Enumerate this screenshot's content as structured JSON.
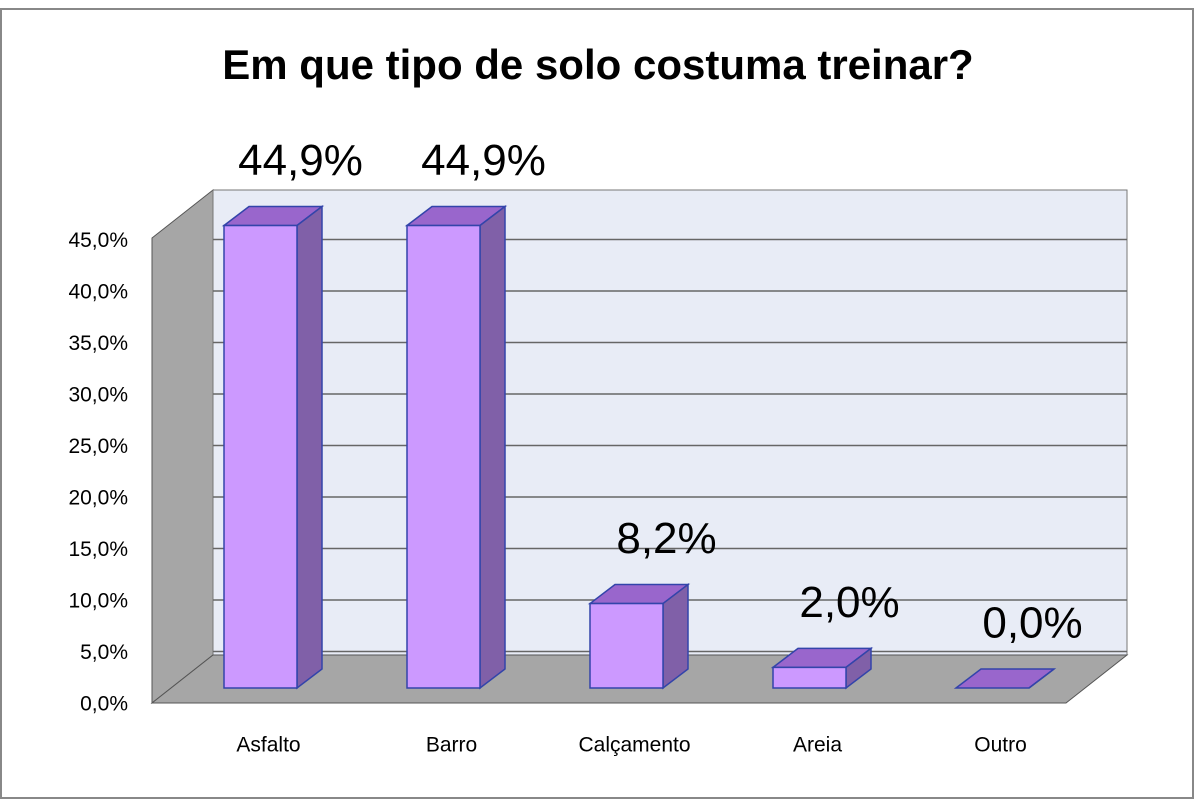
{
  "chart_data": {
    "type": "bar3d",
    "title": "Em que tipo de solo costuma treinar?",
    "categories": [
      "Asfalto",
      "Barro",
      "Calçamento",
      "Areia",
      "Outro"
    ],
    "values": [
      44.9,
      44.9,
      8.2,
      2.0,
      0.0
    ],
    "value_labels": [
      "44,9%",
      "44,9%",
      "8,2%",
      "2,0%",
      "0,0%"
    ],
    "color": "#cc99ff",
    "ylim": [
      0,
      50
    ],
    "yticks": [
      {
        "value": 0,
        "label": "0,0%"
      },
      {
        "value": 5,
        "label": "5,0%"
      },
      {
        "value": 10,
        "label": "10,0%"
      },
      {
        "value": 15,
        "label": "15,0%"
      },
      {
        "value": 20,
        "label": "20,0%"
      },
      {
        "value": 25,
        "label": "25,0%"
      },
      {
        "value": 30,
        "label": "30,0%"
      },
      {
        "value": 35,
        "label": "35,0%"
      },
      {
        "value": 40,
        "label": "40,0%"
      },
      {
        "value": 45,
        "label": "45,0%"
      }
    ],
    "grid": true
  }
}
